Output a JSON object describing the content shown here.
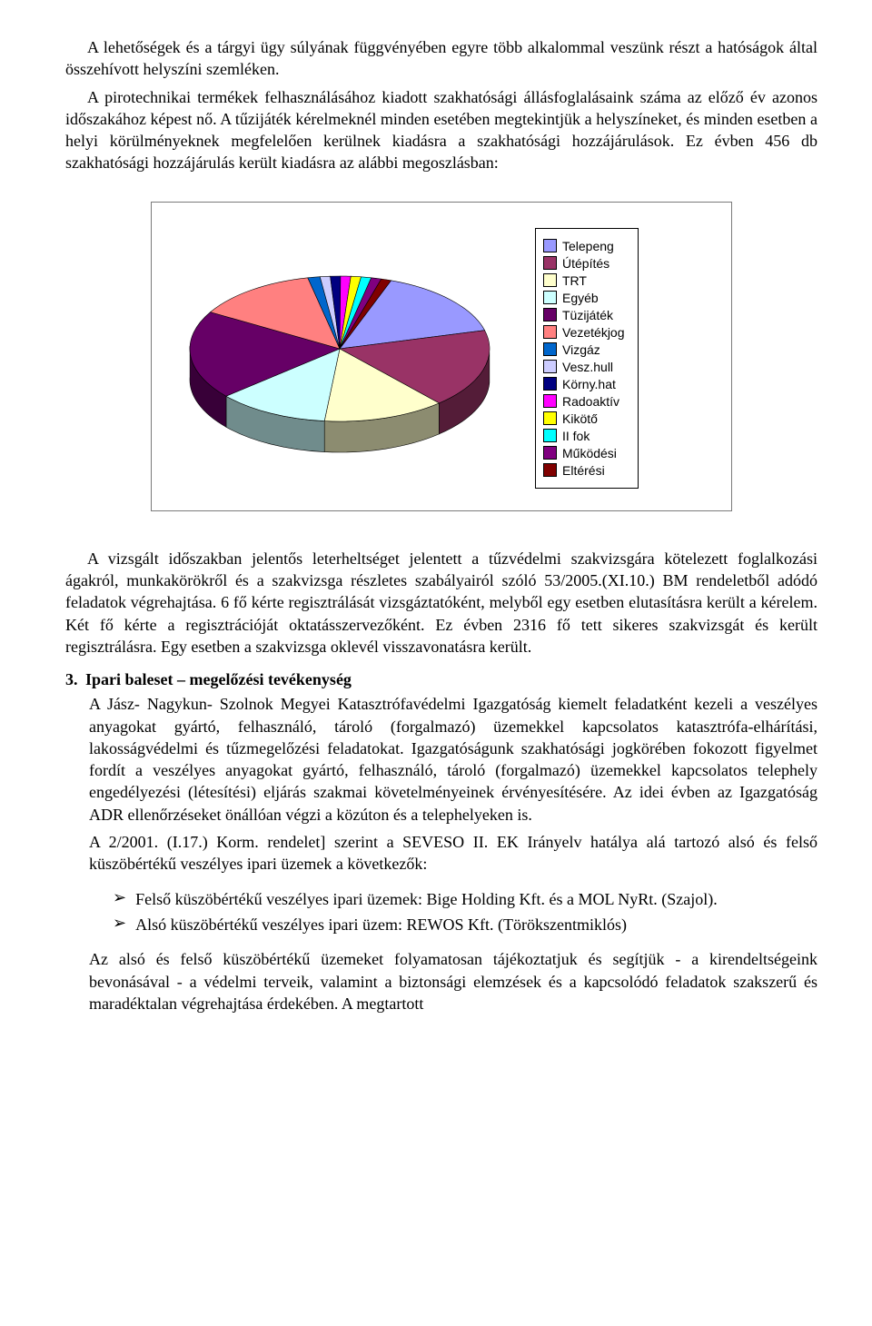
{
  "para1": "A lehetőségek és a tárgyi ügy súlyának függvényében egyre több alkalommal veszünk részt a hatóságok által összehívott helyszíni szemléken.",
  "para2": "A pirotechnikai termékek felhasználásához kiadott szakhatósági állásfoglalásaink száma az előző év azonos időszakához képest nő. A tűzijáték kérelmeknél minden esetében megtekintjük a helyszíneket, és minden esetben a helyi körülményeknek megfelelően kerülnek kiadásra a szakhatósági hozzájárulások. Ez évben 456 db szakhatósági hozzájárulás került kiadásra az alábbi megoszlásban:",
  "chart": {
    "type": "pie3d",
    "background_color": "#ffffff",
    "border_color": "#7a7a7a",
    "slices": [
      {
        "label": "Telepeng",
        "value": 70,
        "color": "#9999ff"
      },
      {
        "label": "Útépítés",
        "value": 80,
        "color": "#993366"
      },
      {
        "label": "TRT",
        "value": 60,
        "color": "#ffffcc"
      },
      {
        "label": "Egyéb",
        "value": 55,
        "color": "#ccffff"
      },
      {
        "label": "Tüzijáték",
        "value": 90,
        "color": "#660066"
      },
      {
        "label": "Vezetékjog",
        "value": 60,
        "color": "#ff8080"
      },
      {
        "label": "Vizgáz",
        "value": 6,
        "color": "#0066cc"
      },
      {
        "label": "Vesz.hull",
        "value": 5,
        "color": "#ccccff"
      },
      {
        "label": "Körny.hat",
        "value": 5,
        "color": "#000080"
      },
      {
        "label": "Radoaktív",
        "value": 5,
        "color": "#ff00ff"
      },
      {
        "label": "Kikötő",
        "value": 5,
        "color": "#ffff00"
      },
      {
        "label": "II fok",
        "value": 5,
        "color": "#00ffff"
      },
      {
        "label": "Működési",
        "value": 5,
        "color": "#800080"
      },
      {
        "label": "Eltérési",
        "value": 5,
        "color": "#800000"
      }
    ],
    "legend_font_family": "Arial",
    "legend_font_size": 14,
    "side_darken": 0.55
  },
  "para3": "A vizsgált időszakban jelentős leterheltséget jelentett a tűzvédelmi szakvizsgára kötelezett foglalkozási ágakról, munkakörökről és a szakvizsga részletes szabályairól szóló 53/2005.(XI.10.) BM rendeletből adódó feladatok végrehajtása. 6 fő kérte regisztrálását vizsgáztatóként, melyből egy esetben elutasításra került a kérelem. Két fő kérte a regisztrációját oktatásszervezőként. Ez évben 2316 fő tett sikeres szakvizsgát és került regisztrálásra. Egy esetben a szakvizsga oklevél visszavonatásra került.",
  "section": {
    "num": "3.",
    "title": "Ipari baleset – megelőzési tevékenység",
    "body1": "A Jász- Nagykun- Szolnok Megyei Katasztrófavédelmi Igazgatóság kiemelt feladatként kezeli a veszélyes anyagokat gyártó, felhasználó, tároló (forgalmazó) üzemekkel kapcsolatos katasztrófa-elhárítási, lakosságvédelmi és tűzmegelőzési feladatokat. Igazgatóságunk szakhatósági jogkörében fokozott figyelmet fordít a veszélyes anyagokat gyártó, felhasználó, tároló (forgalmazó) üzemekkel kapcsolatos telephely engedélyezési (létesítési) eljárás szakmai követelményeinek érvényesítésére. Az idei évben az Igazgatóság ADR ellenőrzéseket önállóan végzi a közúton és a telephelyeken is.",
    "body2": "A 2/2001. (I.17.) Korm. rendelet] szerint a SEVESO II. EK Irányelv hatálya alá tartozó alsó és felső küszöbértékű veszélyes ipari üzemek a következők:",
    "bullets": [
      "Felső küszöbértékű veszélyes ipari üzemek: Bige Holding Kft. és a MOL NyRt. (Szajol).",
      "Alsó küszöbértékű veszélyes ipari üzem: REWOS Kft. (Törökszentmiklós)"
    ],
    "body3": "Az alsó és felső küszöbértékű üzemeket folyamatosan tájékoztatjuk és segítjük - a kirendeltségeink bevonásával - a védelmi terveik, valamint a biztonsági elemzések és a kapcsolódó feladatok szakszerű és maradéktalan végrehajtása érdekében. A megtartott"
  }
}
